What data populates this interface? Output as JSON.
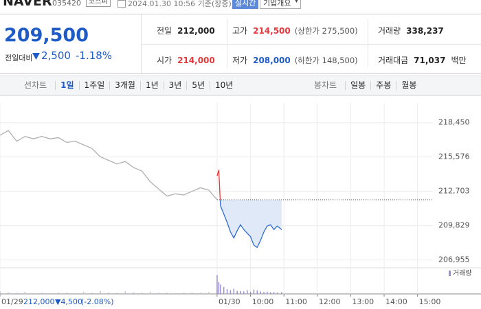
{
  "header": {
    "name": "NAVER",
    "code": "035420",
    "market": "코스피",
    "timestamp": "2024.01.30 10:56 기준(장중)",
    "realtime_button": "실시간",
    "company_button": "기업개요"
  },
  "quote": {
    "price": "209,500",
    "change_label": "전일대비",
    "change": "2,500",
    "change_pct": "-1.18%"
  },
  "stats": [
    {
      "label": "전일",
      "value": "212,000"
    },
    {
      "label": "고가",
      "value": "214,500",
      "note": "(상한가 275,500)"
    },
    {
      "label": "거래량",
      "value": "338,237"
    },
    {
      "label": "시가",
      "value": "214,000"
    },
    {
      "label": "저가",
      "value": "208,000",
      "note": "(하한가 148,500)"
    },
    {
      "label": "거래대금",
      "value": "71,037",
      "unit": "백만"
    }
  ],
  "tabs": {
    "line_label": "선차트",
    "line_periods": [
      "1일",
      "1주일",
      "3개월",
      "1년",
      "3년",
      "5년",
      "10년"
    ],
    "active": 0,
    "candle_label": "봉차트",
    "candle_periods": [
      "일봉",
      "주봉",
      "월봉"
    ]
  },
  "chart_data": {
    "type": "line",
    "xlim": [
      0,
      14.4
    ],
    "xticks": [
      {
        "value": 0,
        "label": "01/29"
      },
      {
        "value": 6.5,
        "label": "01/30"
      },
      {
        "value": 7.5,
        "label": "10:00"
      },
      {
        "value": 8.5,
        "label": "11:00"
      },
      {
        "value": 9.5,
        "label": "12:00"
      },
      {
        "value": 10.5,
        "label": "13:00"
      },
      {
        "value": 11.5,
        "label": "14:00"
      },
      {
        "value": 12.5,
        "label": "15:00"
      }
    ],
    "ylim": [
      206300,
      220100
    ],
    "yticks": [
      {
        "value": 206955,
        "label": "206,955"
      },
      {
        "value": 209829,
        "label": "209,829"
      },
      {
        "value": 212703,
        "label": "212,703"
      },
      {
        "value": 215576,
        "label": "215,576"
      },
      {
        "value": 218450,
        "label": "218,450"
      }
    ],
    "grid": true,
    "reference": 212000,
    "series": [
      {
        "color": "#b0b0b0",
        "x": [
          0,
          0.25,
          0.5,
          0.75,
          1,
          1.25,
          1.5,
          1.75,
          2,
          2.25,
          2.5,
          2.75,
          3,
          3.25,
          3.5,
          3.75,
          4,
          4.25,
          4.5,
          4.75,
          5,
          5.25,
          5.5,
          5.75,
          6,
          6.25,
          6.5
        ],
        "values": [
          217400,
          217800,
          216900,
          217300,
          217100,
          217300,
          217100,
          217200,
          216800,
          216900,
          216600,
          216300,
          215600,
          215300,
          215000,
          215200,
          214700,
          214400,
          213500,
          212900,
          212300,
          212500,
          212400,
          212700,
          213000,
          212800,
          212000
        ],
        "volume": [
          9000,
          5000,
          4000,
          6000,
          3000,
          4000,
          3000,
          5000,
          4000,
          3000,
          6000,
          4000,
          9000,
          5000,
          4000,
          8000,
          5000,
          4000,
          6000,
          5000,
          4000,
          3000,
          4000,
          5000,
          4000,
          6000,
          12000
        ]
      },
      {
        "color": "#2f6ccf",
        "color_up": "#e5383b",
        "x": [
          6.5,
          6.55,
          6.6,
          6.7,
          6.8,
          6.9,
          7,
          7.1,
          7.2,
          7.3,
          7.4,
          7.5,
          7.6,
          7.7,
          7.8,
          7.9,
          8,
          8.1,
          8.2,
          8.3,
          8.43
        ],
        "values": [
          214000,
          214500,
          211500,
          210800,
          210100,
          209300,
          208800,
          209400,
          209900,
          209500,
          209200,
          208900,
          208200,
          208000,
          208600,
          209300,
          209800,
          209900,
          209500,
          209800,
          209500
        ],
        "volume": [
          60000,
          38000,
          30000,
          22000,
          15000,
          12000,
          16000,
          10000,
          9000,
          8000,
          12000,
          7000,
          14000,
          11000,
          8000,
          6000,
          7000,
          5000,
          6000,
          4000,
          5000
        ]
      }
    ],
    "vlim": [
      0,
      70000
    ],
    "volume_legend": "거래량",
    "footer": {
      "close": "212,000",
      "change": "▼4,500",
      "change_pct": "(-2.08%)"
    }
  }
}
